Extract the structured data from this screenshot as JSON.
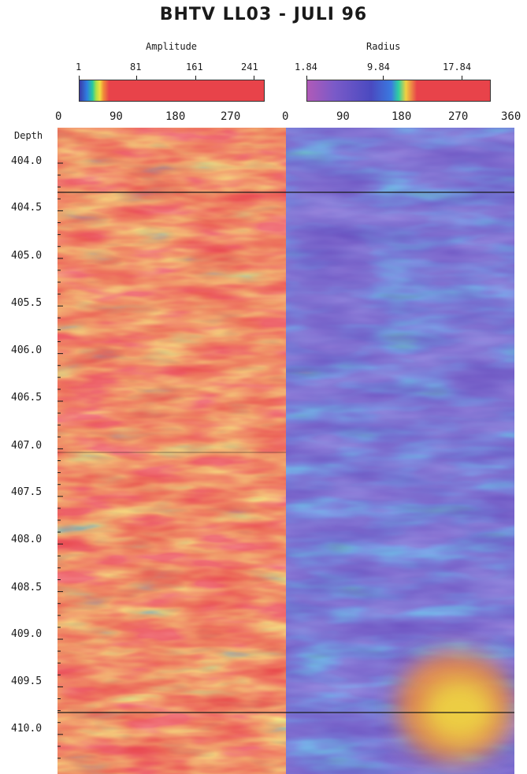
{
  "title": "BHTV LL03 - JULI 96",
  "scales": {
    "amplitude": {
      "name": "Amplitude",
      "ticks": [
        "1",
        "81",
        "161",
        "241"
      ]
    },
    "radius": {
      "name": "Radius",
      "ticks": [
        "1.84",
        "9.84",
        "17.84"
      ]
    }
  },
  "azimuth": {
    "left": [
      "0",
      "90",
      "180",
      "270"
    ],
    "right": [
      "0",
      "90",
      "180",
      "270",
      "360"
    ]
  },
  "depth": {
    "header": "Depth",
    "labels": [
      "404.0",
      "404.5",
      "405.0",
      "405.5",
      "406.0",
      "406.5",
      "407.0",
      "407.5",
      "408.0",
      "408.5",
      "409.0",
      "409.5",
      "410.0"
    ]
  },
  "colors": {
    "amplitude_colormap": [
      "#3a3aa8",
      "#2f7fe0",
      "#28c8a0",
      "#a8e04a",
      "#f0e040",
      "#f08a3a",
      "#e8434a"
    ],
    "radius_colormap": [
      "#b05ab8",
      "#7a5ac8",
      "#4a4ac0",
      "#3a7ae0",
      "#2fd0a0",
      "#f0d040",
      "#e8434a"
    ],
    "amplitude_dominant": "#e8434a",
    "radius_dominant": "#6a50c0"
  }
}
